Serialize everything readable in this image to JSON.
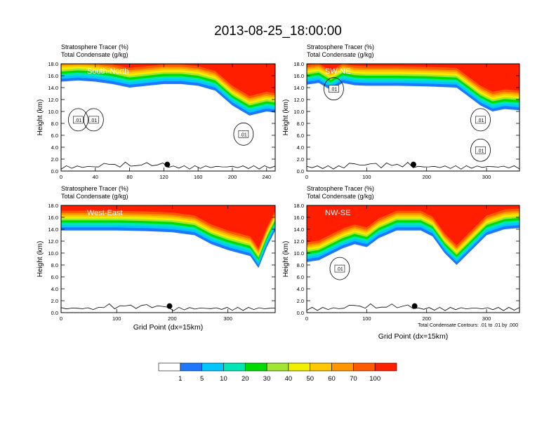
{
  "page_title": "2013-08-25_18:00:00",
  "chart_data": [
    {
      "type": "heatmap",
      "panel": "South-North",
      "line1": "Stratosphere Tracer   (%)",
      "line2": "Total Condensate   (g/kg)",
      "ylabel": "Height (km)",
      "xlabel": "",
      "xlim": [
        0,
        250
      ],
      "ylim": [
        0,
        18
      ],
      "xticks": [
        "0",
        "40",
        "80",
        "120",
        "160",
        "200",
        "240"
      ],
      "yticks": [
        "0.0",
        "2.0",
        "4.0",
        "6.0",
        "8.0",
        "10.0",
        "12.0",
        "14.0",
        "16.0",
        "18.0"
      ],
      "tropopause_x": [
        0,
        20,
        40,
        60,
        80,
        100,
        120,
        140,
        160,
        180,
        200,
        220,
        240,
        250
      ],
      "tropopause_km": [
        15.0,
        15.2,
        15.0,
        14.6,
        14.0,
        14.3,
        14.6,
        14.6,
        14.3,
        13.5,
        11.0,
        9.3,
        10.0,
        9.8
      ],
      "marker": {
        "x": 124,
        "y": 1.1
      },
      "contour_labels": [
        {
          "text": ".01",
          "x": 20,
          "y": 8.6
        },
        {
          "text": ".01",
          "x": 38,
          "y": 8.6
        },
        {
          "text": ".01",
          "x": 213,
          "y": 6.2
        }
      ]
    },
    {
      "type": "heatmap",
      "panel": "SW-NE",
      "line1": "Stratosphere Tracer   (%)",
      "line2": "Total Condensate   (g/kg)",
      "ylabel": "Height (km)",
      "xlabel": "",
      "xlim": [
        0,
        355
      ],
      "ylim": [
        0,
        18
      ],
      "xticks": [
        "0",
        "100",
        "200",
        "300"
      ],
      "yticks": [
        "0.0",
        "2.0",
        "4.0",
        "6.0",
        "8.0",
        "10.0",
        "12.0",
        "14.0",
        "16.0",
        "18.0"
      ],
      "tropopause_x": [
        0,
        20,
        40,
        60,
        80,
        100,
        150,
        200,
        250,
        270,
        290,
        310,
        330,
        355
      ],
      "tropopause_km": [
        14.5,
        14.8,
        13.6,
        14.8,
        14.4,
        14.3,
        14.3,
        14.2,
        14.0,
        12.5,
        11.0,
        10.0,
        10.4,
        10.2
      ],
      "marker": {
        "x": 178,
        "y": 1.1
      },
      "contour_labels": [
        {
          "text": ".01",
          "x": 45,
          "y": 13.8
        },
        {
          "text": ".01",
          "x": 290,
          "y": 8.6
        },
        {
          "text": ".01",
          "x": 290,
          "y": 3.5
        }
      ]
    },
    {
      "type": "heatmap",
      "panel": "West-East",
      "line1": "Stratosphere Tracer   (%)",
      "line2": "Total Condensate   (g/kg)",
      "ylabel": "Height (km)",
      "xlabel": "Grid Point (dx=15km)",
      "xlim": [
        0,
        385
      ],
      "ylim": [
        0,
        18
      ],
      "xticks": [
        "0",
        "100",
        "200",
        "300"
      ],
      "yticks": [
        "0.0",
        "2.0",
        "4.0",
        "6.0",
        "8.0",
        "10.0",
        "12.0",
        "14.0",
        "16.0",
        "18.0"
      ],
      "tropopause_x": [
        0,
        50,
        100,
        150,
        200,
        240,
        270,
        300,
        320,
        340,
        355,
        370,
        385
      ],
      "tropopause_km": [
        13.8,
        13.8,
        13.8,
        13.7,
        13.5,
        13.0,
        11.5,
        10.5,
        10.0,
        9.5,
        7.5,
        11.0,
        13.8
      ],
      "marker": {
        "x": 195,
        "y": 1.1
      },
      "contour_labels": []
    },
    {
      "type": "heatmap",
      "panel": "NW-SE",
      "line1": "Stratosphere Tracer   (%)",
      "line2": "Total Condensate   (g/kg)",
      "ylabel": "Height (km)",
      "xlabel": "Grid Point (dx=15km)",
      "note": "Total Condensate Contours: .01 to .01 by .000",
      "xlim": [
        0,
        355
      ],
      "ylim": [
        0,
        18
      ],
      "xticks": [
        "0",
        "100",
        "200",
        "300"
      ],
      "yticks": [
        "0.0",
        "2.0",
        "4.0",
        "6.0",
        "8.0",
        "10.0",
        "12.0",
        "14.0",
        "16.0",
        "18.0"
      ],
      "tropopause_x": [
        0,
        20,
        40,
        60,
        80,
        100,
        120,
        150,
        190,
        210,
        230,
        250,
        270,
        300,
        330,
        355
      ],
      "tropopause_km": [
        8.5,
        8.8,
        9.8,
        10.8,
        11.5,
        11.0,
        12.5,
        13.8,
        13.8,
        12.8,
        10.0,
        8.0,
        10.0,
        13.0,
        14.0,
        14.2
      ],
      "marker": {
        "x": 180,
        "y": 1.1
      },
      "contour_labels": [
        {
          "text": ".01",
          "x": 55,
          "y": 7.4
        }
      ]
    }
  ],
  "colorbar": {
    "labels": [
      "1",
      "5",
      "10",
      "20",
      "30",
      "40",
      "50",
      "60",
      "70",
      "100"
    ],
    "colors": [
      "#ffffff",
      "#1e78ff",
      "#00c8ff",
      "#00e6b4",
      "#00dc00",
      "#a0e632",
      "#f0f000",
      "#ffc800",
      "#ff9600",
      "#ff5a00",
      "#ff1e00"
    ]
  }
}
